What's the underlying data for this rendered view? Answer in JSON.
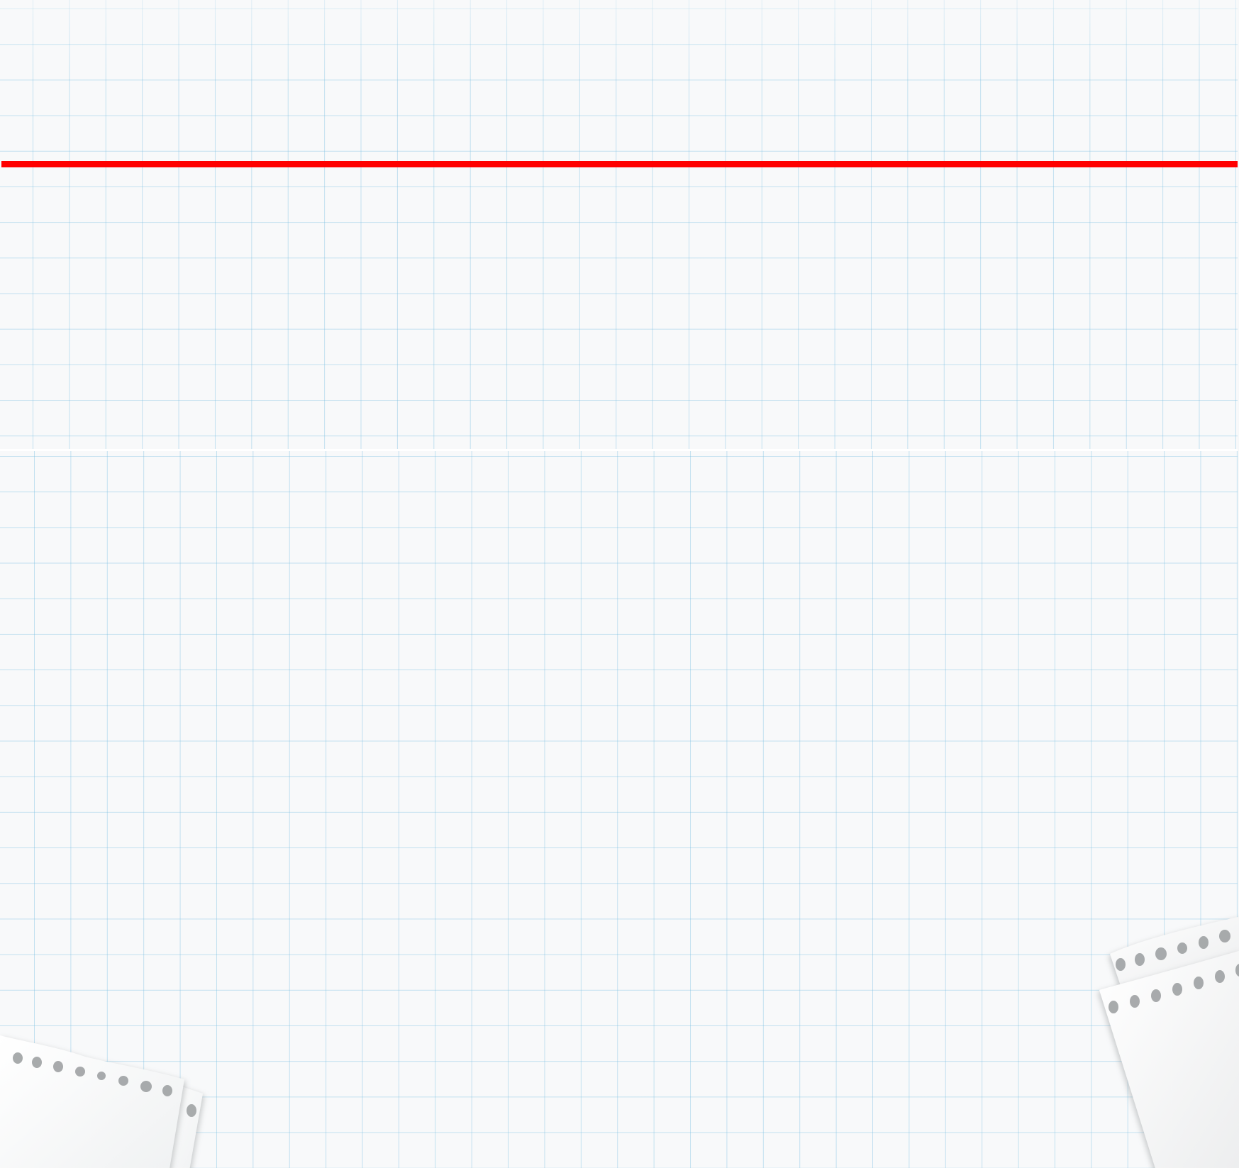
{
  "colors": {
    "background": "#f8f9fa",
    "grid_line": "#9fd1ea",
    "header_rule": "#ff0000",
    "paper": "#fcfcfc",
    "paper_shadow": "#b9bcbf"
  },
  "decorations": {
    "top_panel": "grid-paper-background",
    "bottom_panel": "grid-paper-background",
    "divider": "red-horizontal-rule",
    "bottom_left": "torn-notebook-paper",
    "bottom_right": "torn-notebook-paper"
  }
}
